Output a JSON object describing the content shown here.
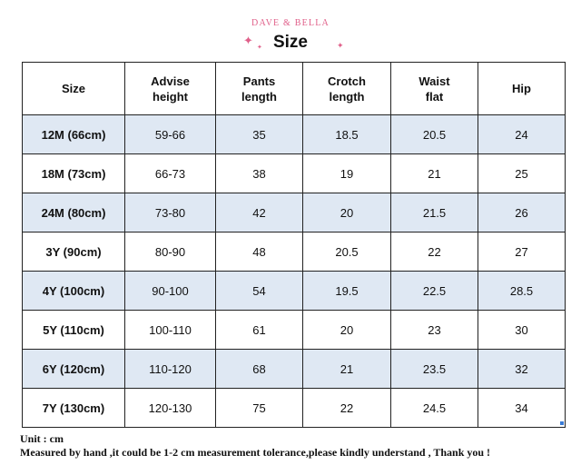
{
  "brand": "DAVE & BELLA",
  "title": "Size",
  "icons": [
    "sparkle-icon",
    "sparkle-icon",
    "sparkle-icon"
  ],
  "colors": {
    "accent": "#e0608a",
    "row_shade": "#dfe8f3",
    "border": "#222222"
  },
  "table": {
    "headers": [
      "Size",
      "Advise\nheight",
      "Pants\nlength",
      "Crotch\nlength",
      "Waist\nflat",
      "Hip"
    ],
    "rows": [
      [
        "12M (66cm)",
        "59-66",
        "35",
        "18.5",
        "20.5",
        "24"
      ],
      [
        "18M (73cm)",
        "66-73",
        "38",
        "19",
        "21",
        "25"
      ],
      [
        "24M (80cm)",
        "73-80",
        "42",
        "20",
        "21.5",
        "26"
      ],
      [
        "3Y (90cm)",
        "80-90",
        "48",
        "20.5",
        "22",
        "27"
      ],
      [
        "4Y (100cm)",
        "90-100",
        "54",
        "19.5",
        "22.5",
        "28.5"
      ],
      [
        "5Y (110cm)",
        "100-110",
        "61",
        "20",
        "23",
        "30"
      ],
      [
        "6Y (120cm)",
        "110-120",
        "68",
        "21",
        "23.5",
        "32"
      ],
      [
        "7Y (130cm)",
        "120-130",
        "75",
        "22",
        "24.5",
        "34"
      ]
    ]
  },
  "footer": {
    "unit": "Unit : cm",
    "note": "Measured by hand ,it could be 1-2 cm measurement tolerance,please kindly understand , Thank you !"
  }
}
